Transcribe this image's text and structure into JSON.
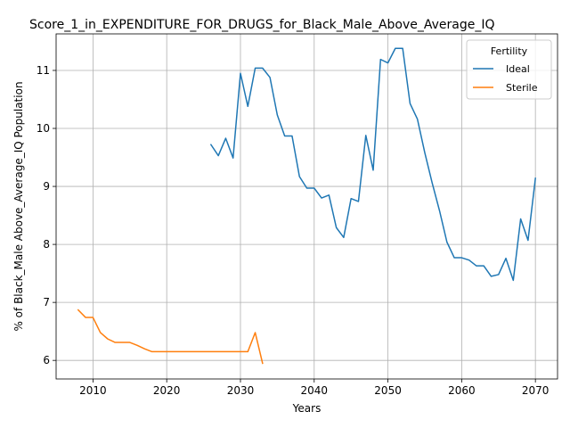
{
  "chart_data": {
    "type": "line",
    "title": "Score_1_in_EXPENDITURE_FOR_DRUGS_for_Black_Male_Above_Average_IQ",
    "xlabel": "Years",
    "ylabel": "% of Black_Male Above_Average_IQ Population",
    "xlim": [
      2005,
      2073
    ],
    "ylim": [
      5.68,
      11.63
    ],
    "xticks": [
      2010,
      2020,
      2030,
      2040,
      2050,
      2060,
      2070
    ],
    "yticks": [
      6,
      7,
      8,
      9,
      10,
      11
    ],
    "grid": true,
    "legend": {
      "title": "Fertility",
      "placement": "top-right"
    },
    "series": [
      {
        "name": "Ideal",
        "color": "#1f77b4",
        "x": [
          2026,
          2027,
          2028,
          2029,
          2030,
          2031,
          2032,
          2033,
          2034,
          2035,
          2036,
          2037,
          2038,
          2039,
          2040,
          2041,
          2042,
          2043,
          2044,
          2045,
          2046,
          2047,
          2048,
          2049,
          2050,
          2051,
          2052,
          2053,
          2054,
          2055,
          2056,
          2057,
          2058,
          2059,
          2060,
          2061,
          2062,
          2063,
          2064,
          2065,
          2066,
          2067,
          2068,
          2069,
          2070
        ],
        "y": [
          9.72,
          9.53,
          9.83,
          9.49,
          10.95,
          10.38,
          11.04,
          11.04,
          10.88,
          10.23,
          9.87,
          9.87,
          9.17,
          8.97,
          8.97,
          8.8,
          8.85,
          8.29,
          8.12,
          8.79,
          8.74,
          9.88,
          9.28,
          11.19,
          11.13,
          11.38,
          11.38,
          10.43,
          10.16,
          9.58,
          9.06,
          8.58,
          8.04,
          7.77,
          7.77,
          7.73,
          7.63,
          7.63,
          7.45,
          7.48,
          7.76,
          7.38,
          8.44,
          8.07,
          9.14
        ]
      },
      {
        "name": "Sterile",
        "color": "#ff7f0e",
        "x": [
          2008,
          2009,
          2010,
          2011,
          2012,
          2013,
          2014,
          2015,
          2016,
          2017,
          2018,
          2019,
          2020,
          2021,
          2022,
          2023,
          2024,
          2025,
          2026,
          2027,
          2028,
          2029,
          2030,
          2031,
          2032,
          2033
        ],
        "y": [
          6.87,
          6.74,
          6.74,
          6.48,
          6.37,
          6.31,
          6.31,
          6.31,
          6.26,
          6.2,
          6.15,
          6.15,
          6.15,
          6.15,
          6.15,
          6.15,
          6.15,
          6.15,
          6.15,
          6.15,
          6.15,
          6.15,
          6.15,
          6.15,
          6.48,
          5.95
        ]
      }
    ]
  }
}
